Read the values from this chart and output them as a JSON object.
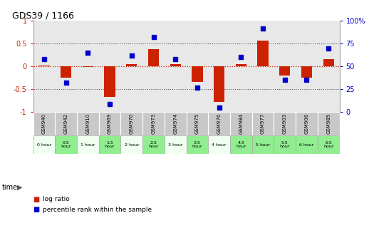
{
  "title": "GDS39 / 1166",
  "samples": [
    "GSM940",
    "GSM942",
    "GSM910",
    "GSM969",
    "GSM970",
    "GSM973",
    "GSM974",
    "GSM975",
    "GSM976",
    "GSM984",
    "GSM977",
    "GSM903",
    "GSM906",
    "GSM985"
  ],
  "times": [
    "0 hour",
    "0.5\nhour",
    "1 hour",
    "1.5\nhour",
    "2 hour",
    "2.5\nhour",
    "3 hour",
    "3.5\nhour",
    "4 hour",
    "4.5\nhour",
    "5 hour",
    "5.5\nhour",
    "6 hour",
    "6.5\nhour"
  ],
  "log_ratio": [
    0.02,
    -0.25,
    -0.02,
    -0.68,
    0.05,
    0.37,
    0.05,
    -0.35,
    -0.78,
    0.05,
    0.56,
    -0.2,
    -0.25,
    0.15
  ],
  "percentile": [
    58,
    32,
    65,
    8,
    62,
    82,
    58,
    26,
    4,
    60,
    92,
    35,
    35,
    70
  ],
  "time_colors": [
    "#f0fff0",
    "#90ee90",
    "#f0fff0",
    "#90ee90",
    "#f0fff0",
    "#90ee90",
    "#f0fff0",
    "#90ee90",
    "#f0fff0",
    "#90ee90",
    "#90ee90",
    "#90ee90",
    "#90ee90",
    "#90ee90"
  ],
  "bar_color": "#cc2200",
  "dot_color": "#0000cc",
  "left_ylim": [
    -1,
    1
  ],
  "right_ylim": [
    0,
    100
  ],
  "left_yticks": [
    -1,
    -0.5,
    0,
    0.5,
    1
  ],
  "right_yticks": [
    0,
    25,
    50,
    75,
    100
  ],
  "bg_color": "#e8e8e8",
  "sample_box_color": "#c8c8c8",
  "zero_line_color": "#cc2200"
}
